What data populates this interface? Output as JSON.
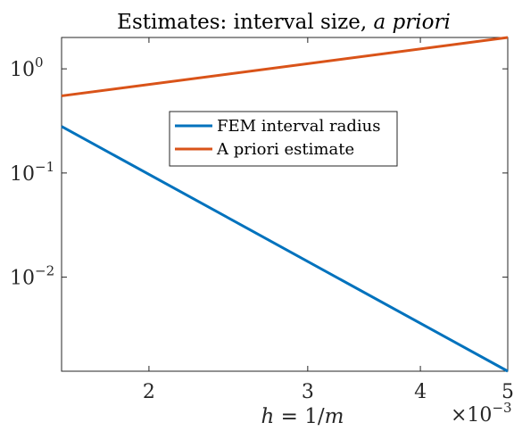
{
  "chart_data": {
    "type": "line",
    "title_prefix": "Estimates: interval size, ",
    "title_italic": "a priori",
    "xlabel_h": "h",
    "xlabel_eq": " = 1/",
    "xlabel_m": "m",
    "x_scale": "log",
    "y_scale": "log",
    "x_multiplier_base": "×10",
    "x_multiplier_exp": "−3",
    "xlim": [
      0.0016,
      0.005
    ],
    "ylim": [
      0.00125,
      2.0
    ],
    "x_ticks": [
      {
        "value": 0.002,
        "label": "2"
      },
      {
        "value": 0.003,
        "label": "3"
      },
      {
        "value": 0.004,
        "label": "4"
      },
      {
        "value": 0.005,
        "label": "5"
      }
    ],
    "y_ticks": [
      {
        "value": 1,
        "base": "10",
        "exp": "0"
      },
      {
        "value": 0.1,
        "base": "10",
        "exp": "−1"
      },
      {
        "value": 0.01,
        "base": "10",
        "exp": "−2"
      }
    ],
    "grid": false,
    "legend_position": "upper center",
    "series": [
      {
        "name": "FEM interval radius",
        "color": "#0072BD",
        "x": [
          0.0016,
          0.005
        ],
        "y": [
          0.28,
          0.00125
        ]
      },
      {
        "name": "A priori estimate",
        "color": "#D95319",
        "x": [
          0.0016,
          0.005
        ],
        "y": [
          0.55,
          2.0
        ]
      }
    ]
  }
}
